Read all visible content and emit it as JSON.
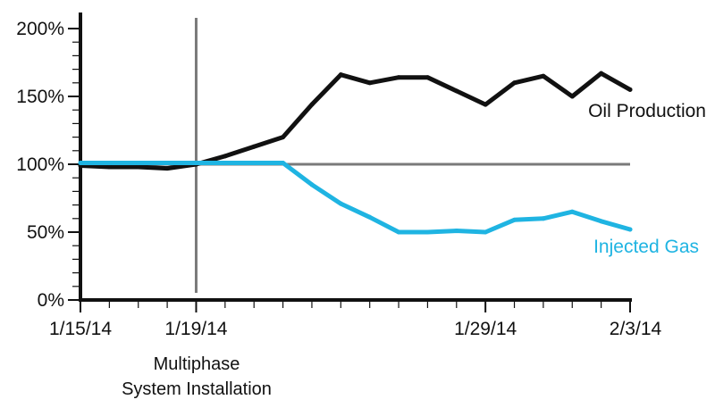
{
  "chart_data": {
    "type": "line",
    "title": "",
    "xlabel": "",
    "ylabel": "",
    "x_ticks": [
      "1/15/14",
      "1/19/14",
      "1/29/14",
      "2/3/14"
    ],
    "y_ticks": [
      "0%",
      "50%",
      "100%",
      "150%",
      "200%"
    ],
    "ylim": [
      0,
      200
    ],
    "xlim": [
      "1/15/14",
      "2/3/14"
    ],
    "grid": false,
    "reference_line": {
      "y": 100
    },
    "event_marker": {
      "x": "1/19/14",
      "label_lines": [
        "Multiphase",
        "System Installation"
      ]
    },
    "series": [
      {
        "name": "Oil Production",
        "color": "#111111",
        "points": [
          [
            "1/15/14",
            99
          ],
          [
            "1/16/14",
            98
          ],
          [
            "1/17/14",
            98
          ],
          [
            "1/18/14",
            97
          ],
          [
            "1/19/14",
            100
          ],
          [
            "1/20/14",
            106
          ],
          [
            "1/21/14",
            113
          ],
          [
            "1/22/14",
            120
          ],
          [
            "1/23/14",
            144
          ],
          [
            "1/24/14",
            166
          ],
          [
            "1/25/14",
            160
          ],
          [
            "1/26/14",
            164
          ],
          [
            "1/27/14",
            164
          ],
          [
            "1/28/14",
            154
          ],
          [
            "1/29/14",
            144
          ],
          [
            "1/30/14",
            160
          ],
          [
            "1/31/14",
            165
          ],
          [
            "2/1/14",
            150
          ],
          [
            "2/2/14",
            167
          ],
          [
            "2/3/14",
            155
          ]
        ]
      },
      {
        "name": "Injected Gas",
        "color": "#1fb4e2",
        "points": [
          [
            "1/15/14",
            101
          ],
          [
            "1/16/14",
            101
          ],
          [
            "1/17/14",
            101
          ],
          [
            "1/18/14",
            101
          ],
          [
            "1/19/14",
            101
          ],
          [
            "1/20/14",
            101
          ],
          [
            "1/21/14",
            101
          ],
          [
            "1/22/14",
            101
          ],
          [
            "1/23/14",
            85
          ],
          [
            "1/24/14",
            71
          ],
          [
            "1/25/14",
            61
          ],
          [
            "1/26/14",
            50
          ],
          [
            "1/27/14",
            50
          ],
          [
            "1/28/14",
            51
          ],
          [
            "1/29/14",
            50
          ],
          [
            "1/30/14",
            59
          ],
          [
            "1/31/14",
            60
          ],
          [
            "2/1/14",
            65
          ],
          [
            "2/2/14",
            58
          ],
          [
            "2/3/14",
            52
          ]
        ]
      }
    ]
  }
}
